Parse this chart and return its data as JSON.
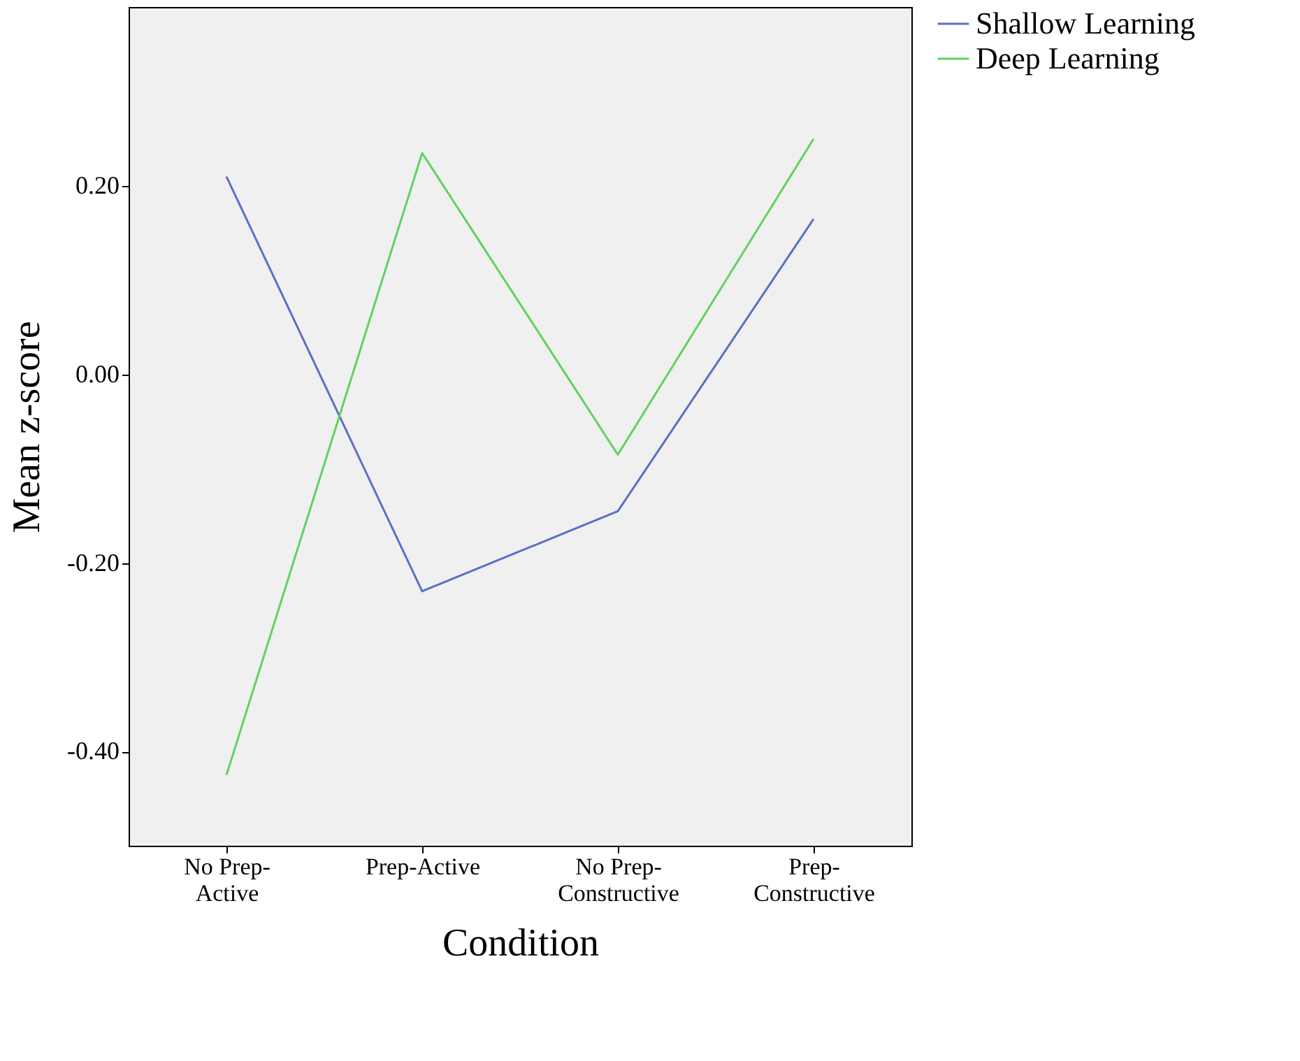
{
  "chart_data": {
    "type": "line",
    "xlabel": "Condition",
    "ylabel": "Mean z-score",
    "categories": [
      "No Prep-Active",
      "Prep-Active",
      "No Prep-Constructive",
      "Prep-Constructive"
    ],
    "series": [
      {
        "name": "Shallow Learning",
        "color": "#5b6fc6",
        "values": [
          0.21,
          -0.23,
          -0.145,
          0.165
        ]
      },
      {
        "name": "Deep Learning",
        "color": "#5ed35e",
        "values": [
          -0.425,
          0.235,
          -0.085,
          0.25
        ]
      }
    ],
    "ylim": [
      -0.5,
      0.39
    ],
    "yticks": [
      {
        "value": -0.4,
        "label": "-0.40"
      },
      {
        "value": -0.2,
        "label": "-0.20"
      },
      {
        "value": 0,
        "label": "0.00"
      },
      {
        "value": 0.2,
        "label": "0.20"
      }
    ],
    "grid": false,
    "legend": "top right",
    "marker": "none",
    "line_style": "solid"
  }
}
